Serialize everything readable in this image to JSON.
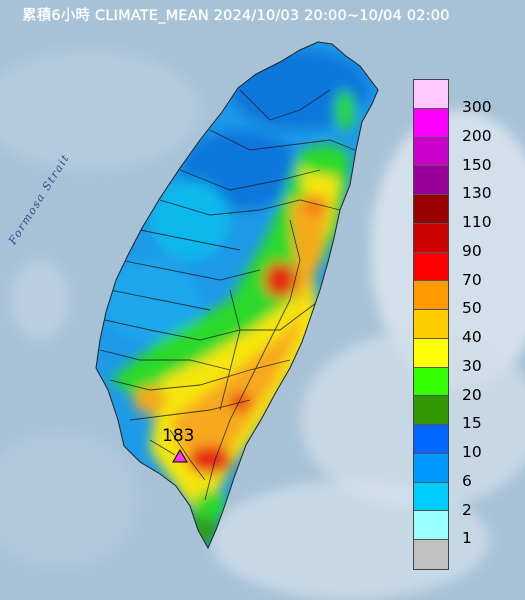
{
  "title": "累積6小時 CLIMATE_MEAN 2024/10/03 20:00~10/04 02:00",
  "strait_label": "Formosa Strait",
  "max_station": {
    "value": "183"
  },
  "legend": {
    "levels": [
      {
        "label": "300",
        "color": "#ffc8ff"
      },
      {
        "label": "200",
        "color": "#ff00ff"
      },
      {
        "label": "150",
        "color": "#cc00cc"
      },
      {
        "label": "130",
        "color": "#990099"
      },
      {
        "label": "110",
        "color": "#990000"
      },
      {
        "label": "90",
        "color": "#cc0000"
      },
      {
        "label": "70",
        "color": "#ff0000"
      },
      {
        "label": "50",
        "color": "#ff9900"
      },
      {
        "label": "40",
        "color": "#ffcc00"
      },
      {
        "label": "30",
        "color": "#ffff00"
      },
      {
        "label": "20",
        "color": "#33ff00"
      },
      {
        "label": "15",
        "color": "#339900"
      },
      {
        "label": "10",
        "color": "#0066ff"
      },
      {
        "label": "6",
        "color": "#0099ff"
      },
      {
        "label": "2",
        "color": "#00ccff"
      },
      {
        "label": "1",
        "color": "#99ffff"
      },
      {
        "label": "",
        "color": "#c0c0c0"
      }
    ]
  }
}
